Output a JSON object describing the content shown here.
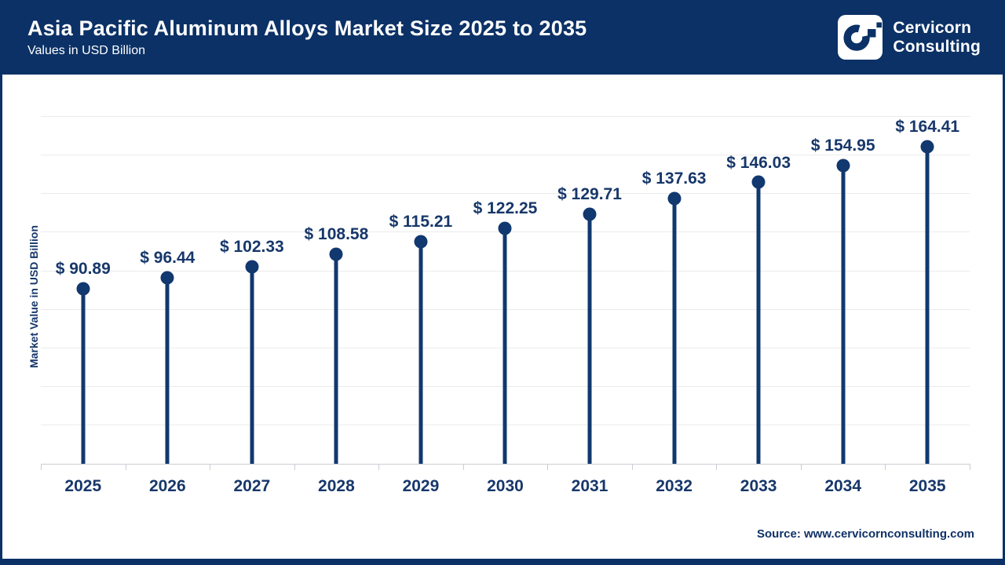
{
  "header": {
    "title": "Asia Pacific Aluminum Alloys Market Size 2025 to 2035",
    "subtitle": "Values in USD Billion",
    "brand": {
      "line1": "Cervicorn",
      "line2": "Consulting"
    }
  },
  "chart_data": {
    "type": "lollipop",
    "title": "Asia Pacific Aluminum Alloys Market Size 2025 to 2035",
    "subtitle": "Values in USD Billion",
    "categories": [
      "2025",
      "2026",
      "2027",
      "2028",
      "2029",
      "2030",
      "2031",
      "2032",
      "2033",
      "2034",
      "2035"
    ],
    "values": [
      90.89,
      96.44,
      102.33,
      108.58,
      115.21,
      122.25,
      129.71,
      137.63,
      146.03,
      154.95,
      164.41
    ],
    "labels": [
      "$ 90.89",
      "$ 96.44",
      "$ 102.33",
      "$ 108.58",
      "$ 115.21",
      "$ 122.25",
      "$ 129.71",
      "$ 137.63",
      "$ 146.03",
      "$ 154.95",
      "$ 164.41"
    ],
    "value_prefix": "$ ",
    "xlabel": "",
    "ylabel": "Market Value in USD Billion",
    "ylim": [
      0,
      200
    ],
    "grid_step": 20,
    "grid": "horizontal-only, light gray, no y tick labels",
    "legend": "none"
  },
  "footer": {
    "source": "Source: www.cervicornconsulting.com"
  },
  "colors": {
    "header_navy": "#0b3166",
    "stem_navy": "#11386f",
    "label_navy": "#17376a",
    "gridline": "#ebebeb",
    "axis_line": "#c9cdd3",
    "background": "#ffffff"
  }
}
